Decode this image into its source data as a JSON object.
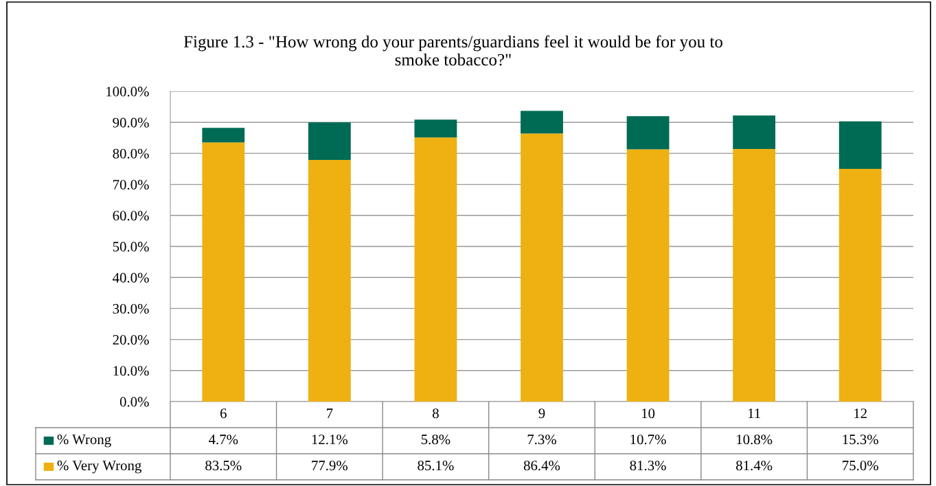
{
  "chart_data": {
    "type": "bar",
    "stacked": true,
    "title": "Figure 1.3 - \"How wrong do your parents/guardians feel it would be for you to\nsmoke tobacco?\"",
    "categories": [
      "6",
      "7",
      "8",
      "9",
      "10",
      "11",
      "12"
    ],
    "series": [
      {
        "name": "% Very Wrong",
        "color": "#eeb111",
        "values": [
          83.5,
          77.9,
          85.1,
          86.4,
          81.3,
          81.4,
          75.0
        ],
        "value_labels": [
          "83.5%",
          "77.9%",
          "85.1%",
          "86.4%",
          "81.3%",
          "81.4%",
          "75.0%"
        ]
      },
      {
        "name": "% Wrong",
        "color": "#006b54",
        "values": [
          4.7,
          12.1,
          5.8,
          7.3,
          10.7,
          10.8,
          15.3
        ],
        "value_labels": [
          "4.7%",
          "12.1%",
          "5.8%",
          "7.3%",
          "10.7%",
          "10.8%",
          "15.3%"
        ]
      }
    ],
    "ylim": [
      0,
      100
    ],
    "yticks": [
      {
        "value": 0,
        "label": "0.0%"
      },
      {
        "value": 10,
        "label": "10.0%"
      },
      {
        "value": 20,
        "label": "20.0%"
      },
      {
        "value": 30,
        "label": "30.0%"
      },
      {
        "value": 40,
        "label": "40.0%"
      },
      {
        "value": 50,
        "label": "50.0%"
      },
      {
        "value": 60,
        "label": "60.0%"
      },
      {
        "value": 70,
        "label": "70.0%"
      },
      {
        "value": 80,
        "label": "80.0%"
      },
      {
        "value": 90,
        "label": "90.0%"
      },
      {
        "value": 100,
        "label": "100.0%"
      }
    ],
    "grid": "y",
    "legend": "bottom"
  }
}
